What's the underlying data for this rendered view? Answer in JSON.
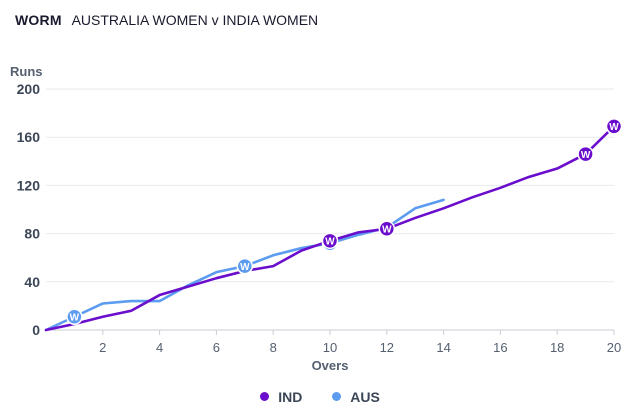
{
  "header": {
    "tag": "WORM",
    "match": "AUSTRALIA WOMEN v INDIA WOMEN"
  },
  "chart_data": {
    "type": "line",
    "ylabel": "Runs",
    "xlabel": "Overs",
    "xlim": [
      0,
      20
    ],
    "ylim": [
      0,
      200
    ],
    "xticks": [
      2,
      4,
      6,
      8,
      10,
      12,
      14,
      16,
      18,
      20
    ],
    "yticks": [
      0,
      40,
      80,
      120,
      160,
      200
    ],
    "grid": "horizontal",
    "legend_position": "bottom-center",
    "wicket_marker_label": "W",
    "series": [
      {
        "name": "IND",
        "color": "#6a0dcc",
        "x": [
          0,
          1,
          2,
          3,
          4,
          5,
          6,
          7,
          8,
          9,
          10,
          11,
          12,
          13,
          14,
          15,
          16,
          17,
          18,
          19,
          20
        ],
        "values": [
          0,
          5,
          11,
          16,
          29,
          36,
          43,
          49,
          53,
          66,
          74,
          81,
          84,
          93,
          101,
          110,
          118,
          127,
          134,
          146,
          169
        ],
        "wickets": [
          10,
          12,
          19,
          20
        ]
      },
      {
        "name": "AUS",
        "color": "#5b9bf0",
        "x": [
          0,
          1,
          2,
          3,
          4,
          5,
          6,
          7,
          8,
          9,
          10,
          11,
          12,
          13,
          14
        ],
        "values": [
          0,
          11,
          22,
          24,
          24,
          37,
          48,
          53,
          62,
          68,
          72,
          79,
          85,
          101,
          108
        ],
        "wickets": [
          1,
          7,
          10
        ]
      }
    ]
  }
}
